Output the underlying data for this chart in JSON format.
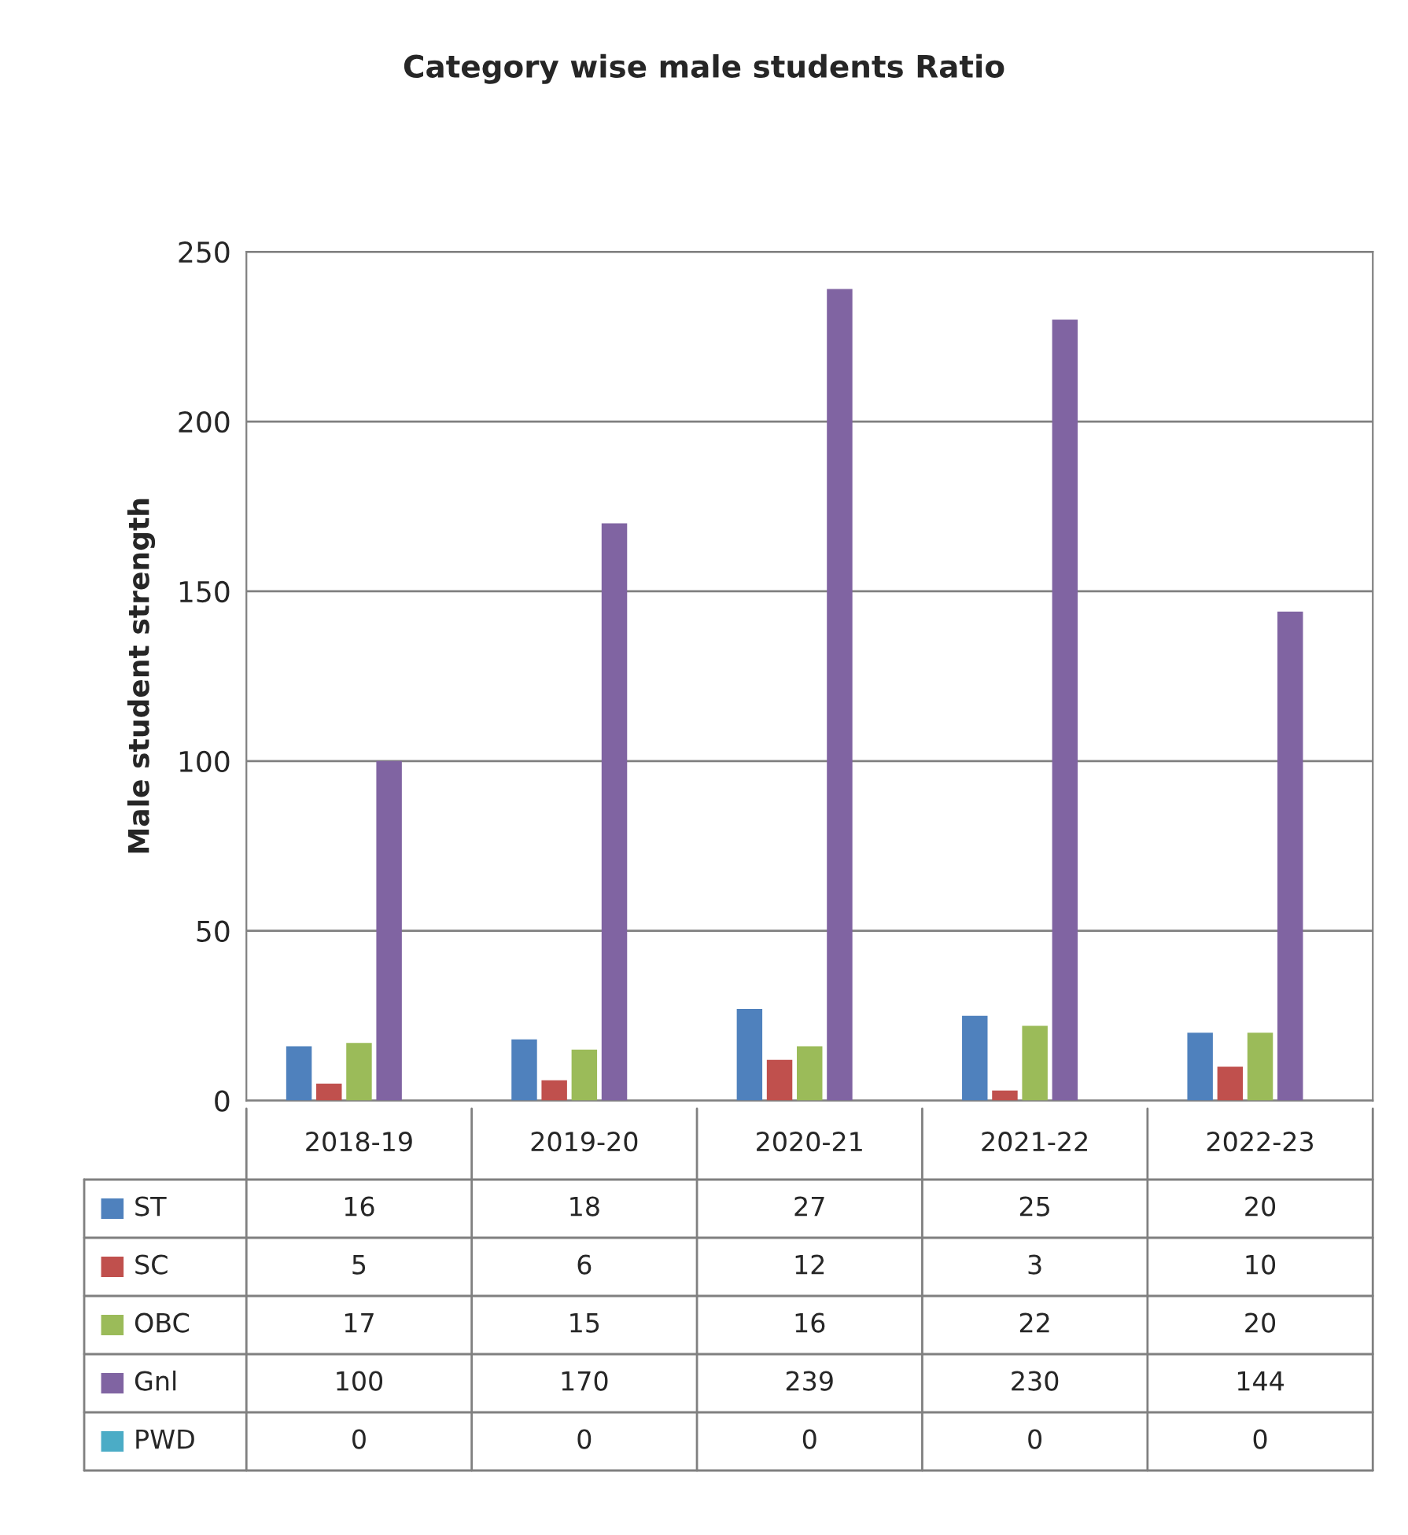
{
  "chart_data": {
    "type": "bar",
    "title": "Category wise male students Ratio",
    "ylabel": "Male student strength",
    "categories": [
      "2018-19",
      "2019-20",
      "2020-21",
      "2021-22",
      "2022-23"
    ],
    "series": [
      {
        "name": "ST",
        "color": "#4f81bd",
        "values": [
          16,
          18,
          27,
          25,
          20
        ]
      },
      {
        "name": "SC",
        "color": "#c0504d",
        "values": [
          5,
          6,
          12,
          3,
          10
        ]
      },
      {
        "name": "OBC",
        "color": "#9bbb59",
        "values": [
          17,
          15,
          16,
          22,
          20
        ]
      },
      {
        "name": "Gnl",
        "color": "#8064a2",
        "values": [
          100,
          170,
          239,
          230,
          144
        ]
      },
      {
        "name": "PWD",
        "color": "#4bacc6",
        "values": [
          0,
          0,
          0,
          0,
          0
        ]
      }
    ],
    "ylim": [
      0,
      250
    ],
    "yticks": [
      0,
      50,
      100,
      150,
      200,
      250
    ],
    "grid": "y",
    "data_labels": true,
    "legend": "bottom"
  }
}
